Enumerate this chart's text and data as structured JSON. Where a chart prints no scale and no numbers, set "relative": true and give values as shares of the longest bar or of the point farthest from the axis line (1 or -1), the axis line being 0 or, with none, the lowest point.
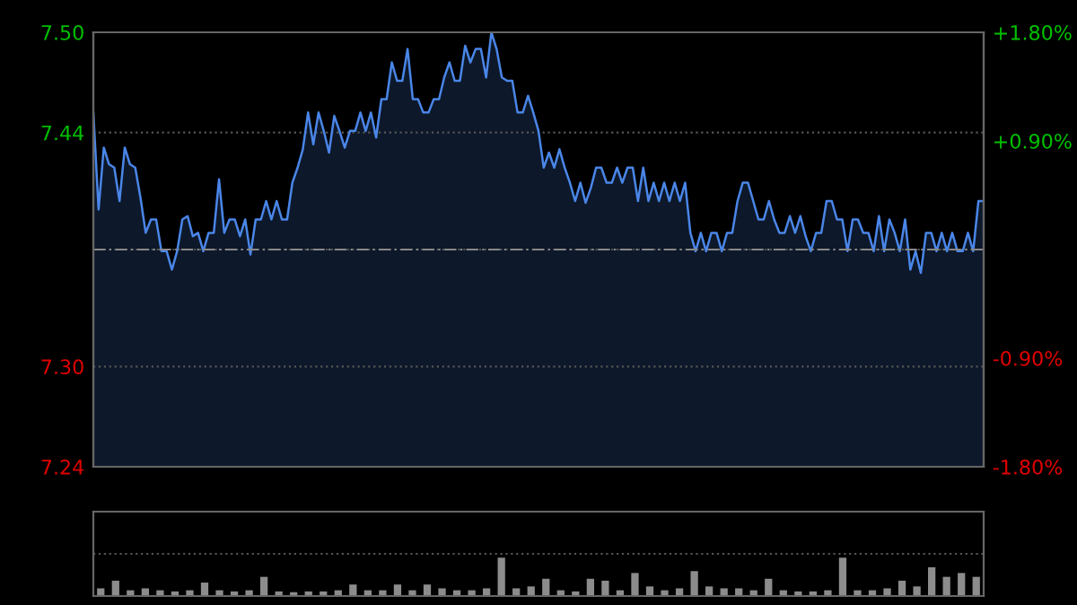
{
  "chart_data": [
    {
      "type": "area",
      "color": "#4a86e8",
      "categories": [
        null,
        null,
        null,
        null,
        null,
        null,
        null,
        null,
        null,
        null,
        null,
        null,
        null,
        null,
        null,
        null,
        null,
        null,
        null,
        null,
        null,
        null,
        null,
        null,
        null,
        null,
        null,
        null,
        null,
        null,
        null,
        null,
        null,
        null,
        null,
        null,
        null,
        null,
        null,
        null,
        null,
        null,
        null,
        null,
        null,
        null,
        null,
        null,
        null,
        null,
        null,
        null,
        null,
        null,
        null,
        null,
        null,
        null,
        null,
        null,
        null,
        null,
        null,
        null,
        null,
        null,
        null,
        null,
        null,
        null,
        null,
        null,
        null,
        null,
        null,
        null,
        null,
        null,
        null,
        null,
        null,
        null,
        null,
        null,
        null,
        null,
        null,
        null,
        null,
        null,
        null,
        null,
        null,
        null,
        null,
        null,
        null,
        null,
        null,
        null,
        null,
        null,
        null,
        null,
        null,
        null,
        null,
        null,
        null,
        null,
        null,
        null,
        null,
        null,
        null,
        null,
        null,
        null,
        null,
        null,
        null,
        null,
        null,
        null,
        null,
        null,
        null,
        null,
        null,
        null,
        null,
        null,
        null,
        null,
        null,
        null,
        null,
        null,
        null,
        null,
        null,
        null,
        null,
        null,
        null,
        null,
        null,
        null,
        null,
        null,
        null,
        null,
        null,
        null,
        null,
        null,
        null,
        null,
        null,
        null,
        null,
        null,
        null,
        null,
        null,
        null,
        null,
        null,
        null,
        null,
        null
      ],
      "values": [
        7.452,
        7.394,
        7.431,
        7.421,
        7.419,
        7.399,
        7.431,
        7.421,
        7.419,
        7.401,
        7.38,
        7.388,
        7.388,
        7.369,
        7.369,
        7.358,
        7.369,
        7.388,
        7.39,
        7.378,
        7.38,
        7.369,
        7.38,
        7.38,
        7.412,
        7.38,
        7.388,
        7.388,
        7.378,
        7.388,
        7.367,
        7.388,
        7.388,
        7.399,
        7.388,
        7.399,
        7.388,
        7.388,
        7.41,
        7.419,
        7.43,
        7.452,
        7.433,
        7.452,
        7.441,
        7.428,
        7.45,
        7.441,
        7.431,
        7.441,
        7.441,
        7.452,
        7.441,
        7.452,
        7.437,
        7.46,
        7.46,
        7.482,
        7.471,
        7.471,
        7.49,
        7.46,
        7.46,
        7.452,
        7.452,
        7.46,
        7.46,
        7.473,
        7.482,
        7.471,
        7.471,
        7.492,
        7.482,
        7.49,
        7.49,
        7.473,
        7.5,
        7.49,
        7.473,
        7.471,
        7.471,
        7.452,
        7.452,
        7.462,
        7.452,
        7.441,
        7.419,
        7.428,
        7.419,
        7.43,
        7.419,
        7.41,
        7.399,
        7.41,
        7.398,
        7.407,
        7.419,
        7.419,
        7.41,
        7.41,
        7.419,
        7.41,
        7.419,
        7.419,
        7.399,
        7.419,
        7.399,
        7.41,
        7.399,
        7.41,
        7.399,
        7.41,
        7.399,
        7.41,
        7.38,
        7.369,
        7.38,
        7.369,
        7.38,
        7.38,
        7.369,
        7.38,
        7.38,
        7.399,
        7.41,
        7.41,
        7.399,
        7.388,
        7.388,
        7.399,
        7.388,
        7.38,
        7.38,
        7.39,
        7.38,
        7.39,
        7.378,
        7.369,
        7.38,
        7.38,
        7.399,
        7.399,
        7.388,
        7.388,
        7.369,
        7.388,
        7.388,
        7.38,
        7.38,
        7.369,
        7.39,
        7.369,
        7.388,
        7.38,
        7.369,
        7.388,
        7.358,
        7.369,
        7.356,
        7.38,
        7.38,
        7.369,
        7.38,
        7.369,
        7.38,
        7.369,
        7.369,
        7.38,
        7.369,
        7.399,
        7.399
      ],
      "ylim": [
        7.24,
        7.5
      ],
      "yticks": [
        {
          "value": 7.5,
          "label": "7.50"
        },
        {
          "value": 7.44,
          "label": "7.44"
        },
        {
          "value": 7.37,
          "label": null
        },
        {
          "value": 7.3,
          "label": "7.30"
        },
        {
          "value": 7.24,
          "label": "7.24"
        }
      ],
      "y2lim": [
        -1.8,
        1.8
      ],
      "y2ticks": [
        {
          "value": 1.8,
          "label": "+1.80%"
        },
        {
          "value": 0.9,
          "label": "+0.90%"
        },
        {
          "value": 0,
          "label": null
        },
        {
          "value": -0.9,
          "label": "-0.90%"
        },
        {
          "value": -1.8,
          "label": "-1.80%"
        }
      ],
      "ref_lines": [
        {
          "axis": "y",
          "value": 7.37,
          "label": null,
          "color": "#888888",
          "line_style": "dashed"
        }
      ],
      "grid": "y"
    },
    {
      "type": "bar",
      "relative": true,
      "color": "#8c8c8c",
      "grid": "y",
      "categories": [
        null,
        null,
        null,
        null,
        null,
        null,
        null,
        null,
        null,
        null,
        null,
        null,
        null,
        null,
        null,
        null,
        null,
        null,
        null,
        null,
        null,
        null,
        null,
        null,
        null,
        null,
        null,
        null,
        null,
        null,
        null,
        null,
        null,
        null,
        null,
        null,
        null,
        null,
        null,
        null,
        null,
        null,
        null,
        null,
        null,
        null,
        null,
        null,
        null,
        null,
        null,
        null,
        null,
        null,
        null,
        null,
        null,
        null,
        null,
        null
      ],
      "values": [
        0.2,
        0.4,
        0.15,
        0.2,
        0.15,
        0.12,
        0.15,
        0.35,
        0.15,
        0.12,
        0.15,
        0.5,
        0.12,
        0.1,
        0.12,
        0.12,
        0.15,
        0.3,
        0.15,
        0.15,
        0.3,
        0.15,
        0.3,
        0.2,
        0.15,
        0.15,
        0.2,
        1.0,
        0.2,
        0.25,
        0.45,
        0.15,
        0.12,
        0.45,
        0.4,
        0.15,
        0.6,
        0.25,
        0.15,
        0.2,
        0.65,
        0.25,
        0.2,
        0.2,
        0.15,
        0.45,
        0.15,
        0.12,
        0.12,
        0.15,
        1.0,
        0.15,
        0.15,
        0.2,
        0.4,
        0.25,
        0.75,
        0.5,
        0.6,
        0.5
      ]
    }
  ]
}
